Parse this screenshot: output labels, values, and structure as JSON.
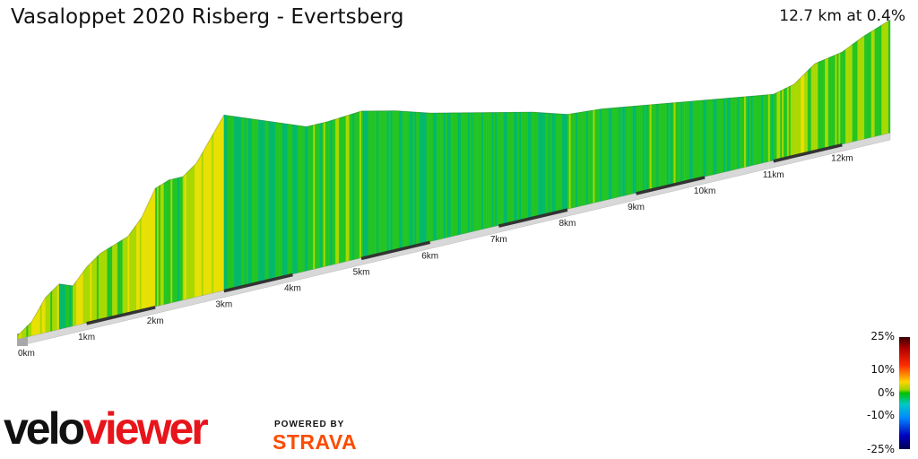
{
  "header": {
    "title": "Vasaloppet 2020 Risberg - Evertsberg",
    "summary": "12.7 km at 0.4%"
  },
  "legend": {
    "labels": [
      "25%",
      "10%",
      "0%",
      "-10%",
      "-25%"
    ],
    "levels": [
      25,
      10,
      0,
      -10,
      -25
    ]
  },
  "branding": {
    "logo_part1": "velo",
    "logo_part2": "viewer",
    "powered_by": "POWERED BY",
    "partner": "STRAVA"
  },
  "colors": {
    "brand_red": "#e8141b",
    "strava_orange": "#fc4c02",
    "km_marker": "#333333"
  },
  "chart_data": {
    "type": "area",
    "subtype": "3d-elevation-profile",
    "title": "Vasaloppet 2020 Risberg - Evertsberg",
    "distance_km": 12.7,
    "avg_gradient_pct": 0.4,
    "x_unit": "km",
    "x_tick_labels": [
      "0km",
      "1km",
      "2km",
      "3km",
      "4km",
      "5km",
      "6km",
      "7km",
      "8km",
      "9km",
      "10km",
      "11km",
      "12km"
    ],
    "x_ticks": [
      0,
      1,
      2,
      3,
      4,
      5,
      6,
      7,
      8,
      9,
      10,
      11,
      12
    ],
    "xlim": [
      0,
      12.7
    ],
    "elevation_m": {
      "x": [
        0.0,
        0.2,
        0.4,
        0.6,
        0.8,
        1.0,
        1.2,
        1.4,
        1.6,
        1.8,
        2.0,
        2.2,
        2.4,
        2.6,
        2.8,
        3.0,
        3.2,
        3.4,
        3.6,
        3.8,
        4.0,
        4.2,
        4.5,
        5.0,
        5.5,
        6.0,
        6.5,
        7.0,
        7.5,
        8.0,
        8.5,
        9.0,
        9.5,
        10.0,
        10.5,
        11.0,
        11.3,
        11.6,
        12.0,
        12.3,
        12.7
      ],
      "y": [
        0,
        4,
        12,
        16,
        14,
        20,
        24,
        26,
        28,
        34,
        44,
        46,
        46,
        50,
        58,
        66,
        64,
        62,
        60,
        58,
        56,
        54,
        54,
        55,
        52,
        48,
        45,
        42,
        39,
        35,
        34,
        32,
        30,
        28,
        26,
        24,
        26,
        32,
        34,
        38,
        42
      ]
    },
    "gradient_legend_pct": [
      25,
      10,
      0,
      -10,
      -25
    ],
    "legend_placement": "bottom-right"
  }
}
